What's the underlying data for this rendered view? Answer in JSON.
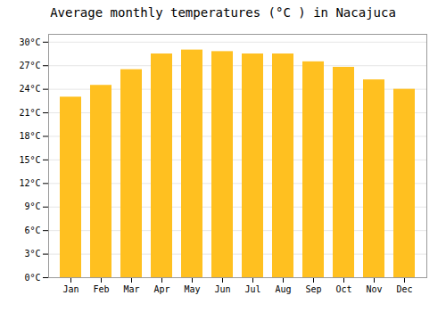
{
  "chart_data": {
    "type": "bar",
    "title": "Average monthly temperatures (°C ) in Nacajuca",
    "categories": [
      "Jan",
      "Feb",
      "Mar",
      "Apr",
      "May",
      "Jun",
      "Jul",
      "Aug",
      "Sep",
      "Oct",
      "Nov",
      "Dec"
    ],
    "values": [
      23.0,
      24.5,
      26.5,
      28.5,
      29.0,
      28.8,
      28.5,
      28.5,
      27.5,
      26.8,
      25.2,
      24.0
    ],
    "color": "#FFC020",
    "ylim": [
      0,
      31
    ],
    "yticks": [
      {
        "value": 0,
        "label": "0°C"
      },
      {
        "value": 3,
        "label": "3°C"
      },
      {
        "value": 6,
        "label": "6°C"
      },
      {
        "value": 9,
        "label": "9°C"
      },
      {
        "value": 12,
        "label": "12°C"
      },
      {
        "value": 15,
        "label": "15°C"
      },
      {
        "value": 18,
        "label": "18°C"
      },
      {
        "value": 21,
        "label": "21°C"
      },
      {
        "value": 24,
        "label": "24°C"
      },
      {
        "value": 27,
        "label": "27°C"
      },
      {
        "value": 30,
        "label": "30°C"
      }
    ],
    "grid": true
  }
}
